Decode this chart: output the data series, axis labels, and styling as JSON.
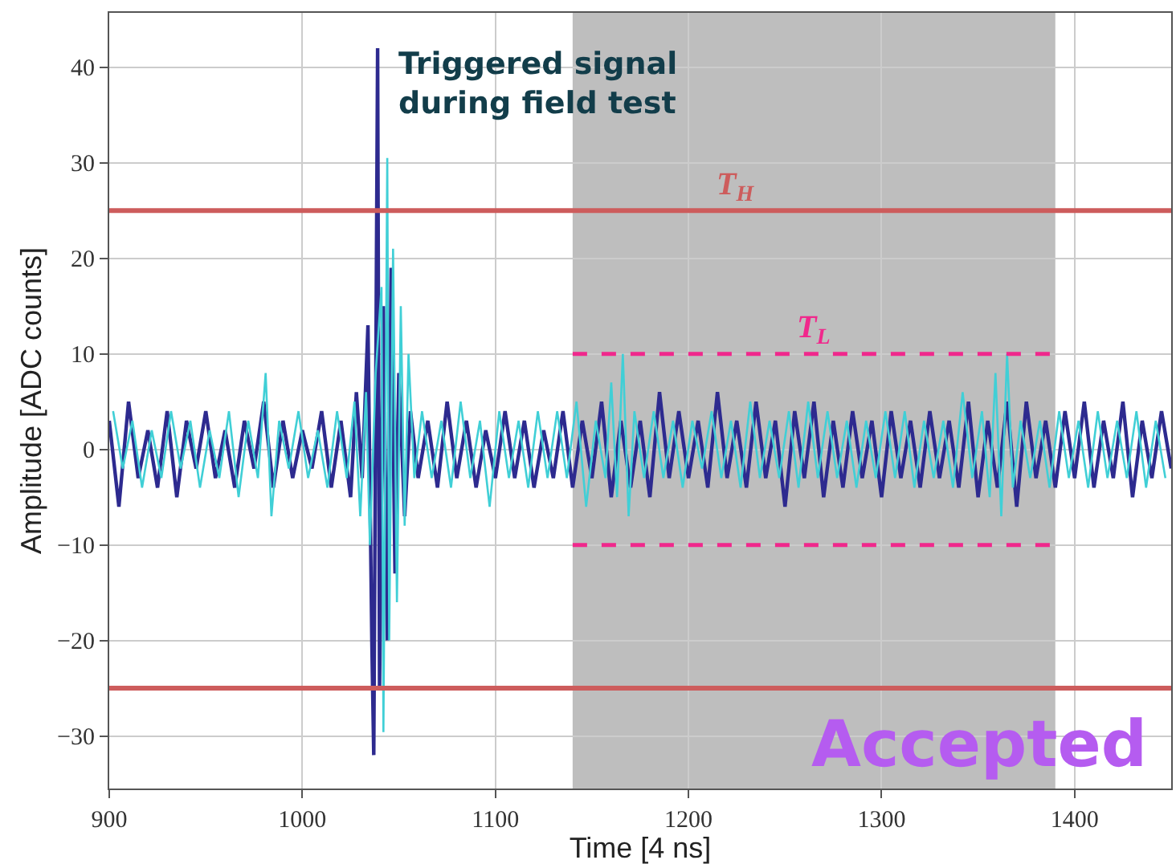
{
  "chart_data": {
    "type": "line",
    "xlabel": "Time [4 ns]",
    "ylabel": "Amplitude [ADC counts]",
    "xlim": [
      900,
      1450
    ],
    "xticks": [
      900,
      1000,
      1100,
      1200,
      1300,
      1400
    ],
    "ylim": [
      -35.5,
      45.7
    ],
    "yticks": [
      -30,
      -20,
      -10,
      0,
      10,
      20,
      30,
      40
    ],
    "grid": true,
    "marker": "none",
    "line_style": "solid",
    "series": [
      {
        "color": "#2d2a8f",
        "x": [
          900,
          905,
          910,
          915,
          920,
          925,
          930,
          935,
          940,
          945,
          950,
          955,
          960,
          965,
          970,
          975,
          980,
          985,
          990,
          995,
          1000,
          1005,
          1010,
          1015,
          1020,
          1025,
          1028,
          1031,
          1034,
          1036,
          1037,
          1039,
          1040,
          1042,
          1044,
          1046,
          1048,
          1050,
          1053,
          1056,
          1060,
          1065,
          1070,
          1075,
          1080,
          1085,
          1090,
          1095,
          1100,
          1105,
          1110,
          1115,
          1120,
          1125,
          1130,
          1135,
          1140,
          1145,
          1150,
          1155,
          1160,
          1165,
          1170,
          1175,
          1180,
          1185,
          1190,
          1195,
          1200,
          1205,
          1210,
          1215,
          1220,
          1225,
          1230,
          1235,
          1240,
          1245,
          1250,
          1255,
          1260,
          1265,
          1270,
          1275,
          1280,
          1285,
          1290,
          1295,
          1300,
          1305,
          1310,
          1315,
          1320,
          1325,
          1330,
          1335,
          1340,
          1345,
          1350,
          1355,
          1360,
          1365,
          1370,
          1375,
          1380,
          1385,
          1390,
          1395,
          1400,
          1405,
          1410,
          1415,
          1420,
          1425,
          1430,
          1435,
          1440,
          1445,
          1450
        ],
        "values": [
          3,
          -6,
          5,
          -3,
          2,
          -4,
          4,
          -5,
          3,
          -2,
          4,
          -3,
          2,
          -4,
          3,
          -2,
          5,
          -4,
          3,
          -3,
          2,
          -2,
          4,
          -4,
          3,
          -5,
          6,
          -3,
          13,
          -20,
          -32,
          42,
          -25,
          15,
          -20,
          19,
          -13,
          8,
          -7,
          4,
          -3,
          3,
          -4,
          5,
          -3,
          3,
          -4,
          2,
          -3,
          4,
          -3,
          3,
          -4,
          2,
          -3,
          4,
          -4,
          3,
          -3,
          5,
          -5,
          3,
          -4,
          3,
          -5,
          6,
          -3,
          4,
          -3,
          3,
          -4,
          6,
          -3,
          3,
          -4,
          5,
          -3,
          3,
          -6,
          4,
          -3,
          5,
          -5,
          3,
          -4,
          4,
          -3,
          3,
          -5,
          4,
          -3,
          3,
          -4,
          4,
          -3,
          3,
          -4,
          5,
          -5,
          3,
          -4,
          5,
          -6,
          5,
          -3,
          3,
          -4,
          4,
          -3,
          5,
          -4,
          3,
          -3,
          5,
          -5,
          3,
          -3,
          4,
          -2
        ]
      },
      {
        "color": "#40cfd6",
        "x": [
          902,
          907,
          912,
          917,
          922,
          927,
          932,
          937,
          942,
          947,
          952,
          957,
          962,
          967,
          972,
          977,
          981,
          984,
          988,
          993,
          998,
          1003,
          1008,
          1013,
          1018,
          1023,
          1027,
          1030,
          1033,
          1035,
          1038,
          1041,
          1042,
          1044,
          1045,
          1047,
          1049,
          1051,
          1053,
          1055,
          1058,
          1062,
          1067,
          1072,
          1077,
          1082,
          1087,
          1092,
          1097,
          1102,
          1107,
          1112,
          1117,
          1122,
          1127,
          1132,
          1137,
          1142,
          1147,
          1152,
          1157,
          1160,
          1163,
          1166,
          1169,
          1172,
          1177,
          1182,
          1187,
          1192,
          1197,
          1202,
          1207,
          1212,
          1217,
          1222,
          1227,
          1232,
          1237,
          1242,
          1247,
          1252,
          1257,
          1262,
          1267,
          1272,
          1277,
          1282,
          1287,
          1292,
          1297,
          1302,
          1307,
          1312,
          1317,
          1322,
          1327,
          1332,
          1337,
          1342,
          1347,
          1352,
          1356,
          1359,
          1362,
          1365,
          1368,
          1372,
          1377,
          1382,
          1387,
          1392,
          1397,
          1402,
          1407,
          1412,
          1417,
          1422,
          1427,
          1432,
          1437,
          1442,
          1447
        ],
        "values": [
          4,
          -2,
          3,
          -4,
          2,
          -3,
          4,
          -2,
          3,
          -4,
          2,
          -3,
          4,
          -5,
          3,
          -3,
          8,
          -7,
          3,
          -2,
          4,
          -3,
          2,
          -4,
          4,
          -3,
          5,
          -7,
          6,
          -10,
          8,
          17,
          -29.6,
          30.5,
          -20,
          21,
          -16,
          15,
          -8,
          10,
          -3,
          4,
          -3,
          3,
          -4,
          5,
          -3,
          3,
          -6,
          4,
          -3,
          3,
          -4,
          4,
          -3,
          4,
          -3,
          5,
          -6,
          3,
          -3,
          7,
          -5,
          10,
          -7,
          4,
          -3,
          4,
          -3,
          3,
          -4,
          3,
          -2,
          4,
          -3,
          3,
          -4,
          5,
          -3,
          3,
          -3,
          4,
          -4,
          5,
          -3,
          4,
          -3,
          3,
          -4,
          3,
          -3,
          4,
          -3,
          4,
          -4,
          3,
          -3,
          3,
          -4,
          6,
          -3,
          4,
          -5,
          8,
          -7,
          10,
          -4,
          3,
          -3,
          3,
          -4,
          4,
          -3,
          3,
          -4,
          4,
          -3,
          3,
          -3,
          4,
          -4,
          3,
          -3
        ]
      },
      {
        "color": "#f0288c",
        "line_style": "dashed",
        "x": [
          1140,
          1390
        ],
        "values": [
          10,
          10
        ]
      },
      {
        "color": "#f0288c",
        "line_style": "dashed",
        "x": [
          1140,
          1390
        ],
        "values": [
          -10,
          -10
        ]
      }
    ],
    "ref_lines": [
      {
        "axis": "y",
        "value": 25,
        "label": "T$_{H}$",
        "color": "#cd5c5c"
      },
      {
        "axis": "y",
        "value": -25,
        "label": null,
        "color": "#cd5c5c"
      }
    ],
    "bands": [
      {
        "axis": "x",
        "from": 1140,
        "to": 1390,
        "label": null,
        "color": "#bebebe"
      }
    ],
    "annotations": [
      "Triggered signal\nduring field test",
      "Accepted",
      {
        "text": "T$_{L}$",
        "x": 1265,
        "y": 10
      }
    ]
  }
}
